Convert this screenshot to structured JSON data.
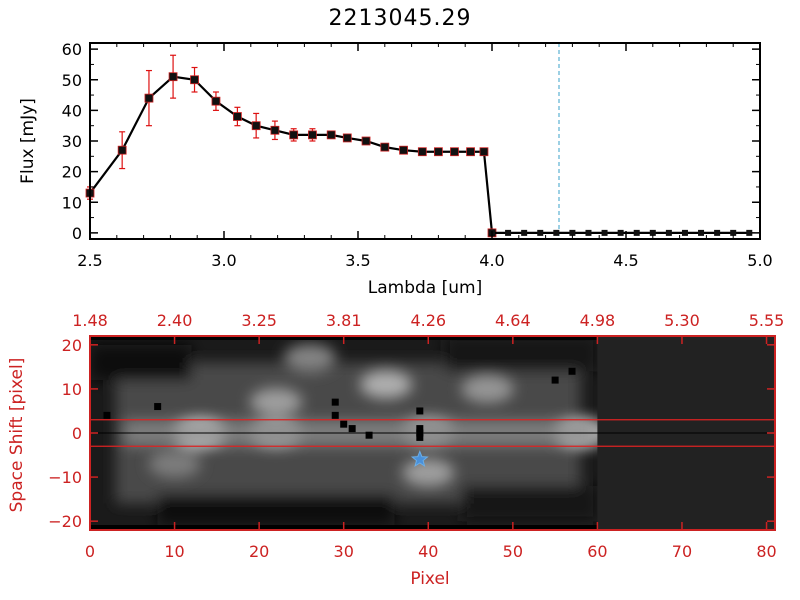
{
  "title": "2213045.29",
  "colors": {
    "axis": "#000000",
    "red": "#cc2222",
    "errorbar": "#dd1111",
    "marker": "#111111",
    "dashed_blue": "#3aa0c8",
    "star": "#4a90d9",
    "hline": "#dd2222",
    "background": "#ffffff"
  },
  "chart_data": [
    {
      "type": "line",
      "name": "spectrum",
      "title": "2213045.29",
      "xlabel": "Lambda [um]",
      "ylabel": "Flux [mJy]",
      "xlim": [
        2.5,
        5.0
      ],
      "ylim": [
        -2,
        62
      ],
      "xticks": [
        2.5,
        3.0,
        3.5,
        4.0,
        4.5,
        5.0
      ],
      "xtick_labels": [
        "2.5",
        "3.0",
        "3.5",
        "4.0",
        "4.5",
        "5.0"
      ],
      "yticks": [
        0,
        10,
        20,
        30,
        40,
        50,
        60
      ],
      "ytick_labels": [
        "0",
        "10",
        "20",
        "30",
        "40",
        "50",
        "60"
      ],
      "vline_x": 4.25,
      "series": [
        {
          "name": "flux",
          "x": [
            2.5,
            2.62,
            2.72,
            2.81,
            2.89,
            2.97,
            3.05,
            3.12,
            3.19,
            3.26,
            3.33,
            3.4,
            3.46,
            3.53,
            3.6,
            3.67,
            3.74,
            3.8,
            3.86,
            3.92,
            3.97,
            4.0
          ],
          "y": [
            13,
            27,
            44,
            51,
            50,
            43,
            38,
            35,
            33.5,
            32,
            32,
            32,
            31,
            30,
            28,
            27,
            26.5,
            26.5,
            26.5,
            26.5,
            26.5,
            0
          ],
          "yerr": [
            2,
            6,
            9,
            7,
            4,
            3,
            3,
            4,
            3,
            2,
            2,
            1,
            1,
            1,
            1,
            1,
            1,
            1,
            1,
            1,
            1,
            0
          ]
        },
        {
          "name": "flux-zero",
          "x": [
            4.0,
            4.06,
            4.12,
            4.18,
            4.24,
            4.3,
            4.36,
            4.42,
            4.48,
            4.54,
            4.6,
            4.66,
            4.72,
            4.78,
            4.84,
            4.9,
            4.96
          ],
          "y": [
            0,
            0,
            0,
            0,
            0,
            0,
            0,
            0,
            0,
            0,
            0,
            0,
            0,
            0,
            0,
            0,
            0
          ]
        }
      ]
    },
    {
      "type": "heatmap",
      "name": "spatial-image",
      "xlabel": "Pixel",
      "ylabel": "Space Shift [pixel]",
      "xlim": [
        0,
        81
      ],
      "ylim": [
        -22,
        22
      ],
      "xticks": [
        0,
        10,
        20,
        30,
        40,
        50,
        60,
        70,
        80
      ],
      "xtick_labels": [
        "0",
        "10",
        "20",
        "30",
        "40",
        "50",
        "60",
        "70",
        "80"
      ],
      "yticks": [
        -20,
        -10,
        0,
        10,
        20
      ],
      "ytick_labels": [
        "−20",
        "−10",
        "0",
        "10",
        "20"
      ],
      "top_axis_label_values": [
        "1.48",
        "2.40",
        "3.25",
        "3.81",
        "4.26",
        "4.64",
        "4.98",
        "5.30",
        "5.55"
      ],
      "top_axis_positions": [
        0,
        10,
        20,
        30,
        40,
        50,
        60,
        70,
        80
      ],
      "red_hlines": [
        3,
        -3
      ],
      "trace_y": 0,
      "mask_start_pixel": 60,
      "bright_blobs": [
        {
          "x": 13,
          "y": 0,
          "brightness": 0.92
        },
        {
          "x": 22,
          "y": 0,
          "brightness": 0.6
        },
        {
          "x": 40,
          "y": 0.5,
          "brightness": 0.55
        },
        {
          "x": 58,
          "y": 0,
          "brightness": 0.8
        },
        {
          "x": 35,
          "y": 11,
          "brightness": 0.6
        },
        {
          "x": 22,
          "y": 7,
          "brightness": 0.5
        },
        {
          "x": 47,
          "y": 10,
          "brightness": 0.45
        },
        {
          "x": 40,
          "y": -9,
          "brightness": 0.5
        },
        {
          "x": 26,
          "y": 17,
          "brightness": 0.35
        },
        {
          "x": 10,
          "y": -7,
          "brightness": 0.3
        }
      ],
      "bad_pixels": [
        [
          2,
          4
        ],
        [
          8,
          6
        ],
        [
          29,
          7
        ],
        [
          29,
          4
        ],
        [
          30,
          2
        ],
        [
          31,
          1
        ],
        [
          33,
          -0.5
        ],
        [
          39,
          5
        ],
        [
          39,
          1
        ],
        [
          39,
          0
        ],
        [
          39,
          -1
        ],
        [
          55,
          12
        ],
        [
          57,
          14
        ]
      ],
      "star_marker": {
        "x": 39,
        "y": -6
      }
    }
  ]
}
